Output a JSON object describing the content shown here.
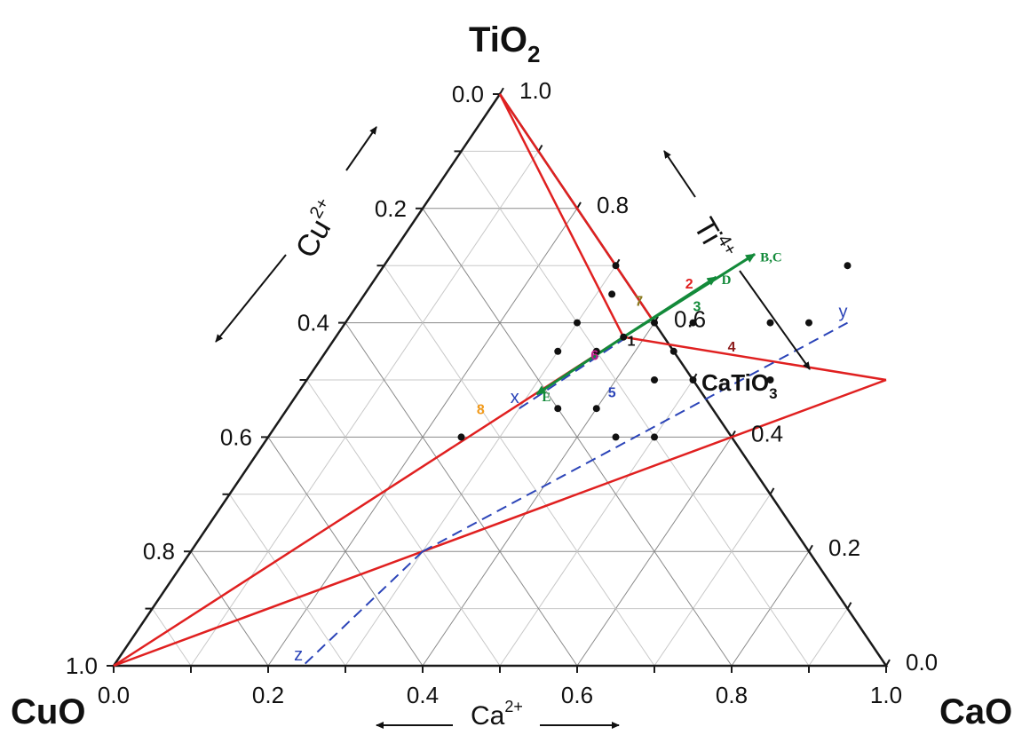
{
  "vertices": {
    "top": {
      "label": "TiO",
      "sub": "2"
    },
    "left": {
      "label": "CuO"
    },
    "right": {
      "label": "CaO"
    }
  },
  "compound": {
    "label": "CaTiO",
    "sub": "3"
  },
  "axes": {
    "left": {
      "ion": "Cu",
      "charge": "2+"
    },
    "right": {
      "ion": "Ti",
      "charge": "4+"
    },
    "bottom": {
      "ion": "Ca",
      "charge": "2+"
    }
  },
  "ticks": {
    "bottom": [
      "0.0",
      "0.2",
      "0.4",
      "0.6",
      "0.8",
      "1.0"
    ],
    "left": [
      "0.0",
      "0.2",
      "0.4",
      "0.6",
      "0.8",
      "1.0"
    ],
    "right": [
      "0.0",
      "0.2",
      "0.4",
      "0.6",
      "0.8",
      "1.0"
    ]
  },
  "grid_step": 0.1,
  "colors": {
    "frame": "#1a1a1a",
    "grid_major": "#8a8a8a",
    "grid_minor": "#c8c8c8",
    "tie_line": "#e02020",
    "dashed": "#2b44b8",
    "arrow": "#138a3a",
    "point": "#111111"
  },
  "tie_lines": [
    [
      [
        0.0,
        1.0
      ],
      [
        0.3725,
        0.575
      ]
    ],
    [
      [
        0.0,
        1.0
      ],
      [
        0.4,
        0.6
      ]
    ],
    [
      [
        0.3725,
        0.575
      ],
      [
        0.75,
        0.5
      ]
    ],
    [
      [
        0.3725,
        0.575
      ],
      [
        0.0,
        0.0
      ]
    ],
    [
      [
        0.0,
        0.0
      ],
      [
        0.75,
        0.5
      ]
    ]
  ],
  "dashed_lines": [
    {
      "from": [
        0.3,
        0.2
      ],
      "to": [
        0.65,
        0.6
      ],
      "labels": [
        {
          "text": "z",
          "at": [
            0.245,
            0.0
          ]
        },
        {
          "text": "y",
          "at": [
            0.65,
            0.6
          ]
        }
      ]
    },
    {
      "from": [
        0.3,
        0.45
      ],
      "to": [
        0.38,
        0.58
      ],
      "labels": [
        {
          "text": "x",
          "at": [
            0.3,
            0.45
          ]
        }
      ]
    }
  ],
  "arrows": [
    {
      "label": "B,C",
      "from": [
        0.3725,
        0.575
      ],
      "to": [
        0.47,
        0.72
      ]
    },
    {
      "label": "D",
      "from": [
        0.3725,
        0.575
      ],
      "to": [
        0.44,
        0.68
      ]
    },
    {
      "label": "E",
      "from": [
        0.3725,
        0.575
      ],
      "to": [
        0.31,
        0.475
      ]
    }
  ],
  "points": [
    [
      0.4,
      0.6
    ],
    [
      0.45,
      0.6
    ],
    [
      0.45,
      0.5
    ],
    [
      0.45,
      0.4
    ],
    [
      0.5,
      0.5
    ],
    [
      0.5,
      0.4
    ],
    [
      0.55,
      0.6
    ],
    [
      0.6,
      0.5
    ],
    [
      0.6,
      0.6
    ],
    [
      0.6,
      0.7
    ],
    [
      0.3,
      0.55
    ],
    [
      0.35,
      0.55
    ],
    [
      0.35,
      0.45
    ],
    [
      0.4,
      0.45
    ],
    [
      0.32,
      0.65
    ],
    [
      0.3725,
      0.575
    ],
    [
      0.25,
      0.4
    ],
    [
      0.3,
      0.6
    ],
    [
      0.3,
      0.7
    ],
    [
      0.45,
      0.55
    ]
  ],
  "point_labels": [
    {
      "text": "1",
      "at": [
        0.385,
        0.56
      ],
      "color": "#111111"
    },
    {
      "text": "2",
      "at": [
        0.41,
        0.66
      ],
      "color": "#e02020"
    },
    {
      "text": "3",
      "at": [
        0.44,
        0.62
      ],
      "color": "#138a3a"
    },
    {
      "text": "4",
      "at": [
        0.52,
        0.55
      ],
      "color": "#8b1a1a"
    },
    {
      "text": "5",
      "at": [
        0.405,
        0.47
      ],
      "color": "#2b44b8"
    },
    {
      "text": "6",
      "at": [
        0.35,
        0.535
      ],
      "color": "#c0208a"
    },
    {
      "text": "7",
      "at": [
        0.36,
        0.63
      ],
      "color": "#8a7a20"
    },
    {
      "text": "8",
      "at": [
        0.25,
        0.44
      ],
      "color": "#f29a1a"
    }
  ]
}
